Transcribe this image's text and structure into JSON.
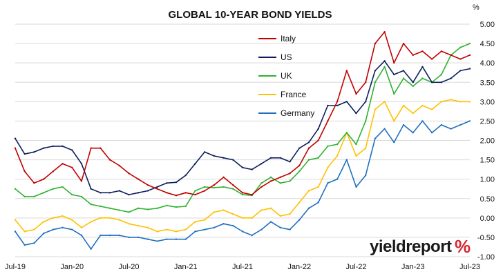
{
  "chart_data": {
    "type": "line",
    "title": "GLOBAL 10-YEAR BOND YIELDS",
    "y_unit_label": "%",
    "ylim": [
      -1.0,
      5.0
    ],
    "y_ticks": [
      "5.00",
      "4.50",
      "4.00",
      "3.50",
      "3.00",
      "2.50",
      "2.00",
      "1.50",
      "1.00",
      "0.50",
      "0.00",
      "-0.50",
      "-1.00"
    ],
    "y_tick_values": [
      5.0,
      4.5,
      4.0,
      3.5,
      3.0,
      2.5,
      2.0,
      1.5,
      1.0,
      0.5,
      0.0,
      -0.5,
      -1.0
    ],
    "x_ticks": [
      "Jul-19",
      "Jan-20",
      "Jul-20",
      "Jan-21",
      "Jul-21",
      "Jan-22",
      "Jul-22",
      "Jan-23",
      "Jul-23"
    ],
    "x_tick_values": [
      "2019-07",
      "2020-01",
      "2020-07",
      "2021-01",
      "2021-07",
      "2022-01",
      "2022-07",
      "2023-01",
      "2023-07"
    ],
    "x": [
      "2019-07",
      "2019-08",
      "2019-09",
      "2019-10",
      "2019-11",
      "2019-12",
      "2020-01",
      "2020-02",
      "2020-03",
      "2020-04",
      "2020-05",
      "2020-06",
      "2020-07",
      "2020-08",
      "2020-09",
      "2020-10",
      "2020-11",
      "2020-12",
      "2021-01",
      "2021-02",
      "2021-03",
      "2021-04",
      "2021-05",
      "2021-06",
      "2021-07",
      "2021-08",
      "2021-09",
      "2021-10",
      "2021-11",
      "2021-12",
      "2022-01",
      "2022-02",
      "2022-03",
      "2022-04",
      "2022-05",
      "2022-06",
      "2022-07",
      "2022-08",
      "2022-09",
      "2022-10",
      "2022-11",
      "2022-12",
      "2023-01",
      "2023-02",
      "2023-03",
      "2023-04",
      "2023-05",
      "2023-06",
      "2023-07"
    ],
    "grid": "horizontal",
    "legend_position": "top-center",
    "series": [
      {
        "name": "Italy",
        "color": "#c00000",
        "values": [
          1.8,
          1.2,
          0.9,
          1.0,
          1.2,
          1.4,
          1.3,
          0.95,
          1.8,
          1.8,
          1.5,
          1.35,
          1.15,
          1.0,
          0.85,
          0.75,
          0.65,
          0.58,
          0.65,
          0.6,
          0.7,
          0.85,
          1.05,
          0.85,
          0.65,
          0.6,
          0.8,
          0.95,
          1.05,
          1.15,
          1.35,
          1.8,
          2.0,
          2.5,
          3.0,
          3.8,
          3.2,
          3.5,
          4.5,
          4.8,
          4.0,
          4.5,
          4.2,
          4.3,
          4.1,
          4.3,
          4.2,
          4.1,
          4.2
        ]
      },
      {
        "name": "US",
        "color": "#0d1f5c",
        "values": [
          2.05,
          1.65,
          1.7,
          1.8,
          1.85,
          1.85,
          1.75,
          1.4,
          0.75,
          0.65,
          0.65,
          0.7,
          0.6,
          0.65,
          0.7,
          0.8,
          0.9,
          0.92,
          1.1,
          1.4,
          1.7,
          1.6,
          1.55,
          1.5,
          1.3,
          1.25,
          1.4,
          1.55,
          1.55,
          1.45,
          1.8,
          1.95,
          2.3,
          2.9,
          2.9,
          3.0,
          2.7,
          3.0,
          3.8,
          4.05,
          3.7,
          3.8,
          3.5,
          3.9,
          3.5,
          3.5,
          3.6,
          3.8,
          3.85
        ]
      },
      {
        "name": "UK",
        "color": "#2fb22f",
        "values": [
          0.75,
          0.55,
          0.55,
          0.65,
          0.75,
          0.8,
          0.6,
          0.55,
          0.35,
          0.3,
          0.25,
          0.2,
          0.15,
          0.25,
          0.22,
          0.25,
          0.32,
          0.28,
          0.3,
          0.7,
          0.8,
          0.78,
          0.8,
          0.75,
          0.6,
          0.58,
          0.9,
          1.05,
          0.9,
          0.95,
          1.2,
          1.5,
          1.55,
          1.85,
          1.9,
          2.2,
          1.9,
          2.5,
          3.5,
          3.9,
          3.2,
          3.6,
          3.4,
          3.6,
          3.5,
          3.7,
          4.2,
          4.4,
          4.5
        ]
      },
      {
        "name": "France",
        "color": "#ffc000",
        "values": [
          -0.05,
          -0.35,
          -0.3,
          -0.1,
          0.0,
          0.05,
          -0.05,
          -0.25,
          -0.1,
          0.0,
          0.0,
          -0.05,
          -0.15,
          -0.2,
          -0.25,
          -0.35,
          -0.3,
          -0.35,
          -0.3,
          -0.1,
          -0.05,
          0.15,
          0.2,
          0.1,
          0.0,
          0.0,
          0.2,
          0.25,
          0.05,
          0.1,
          0.4,
          0.7,
          0.8,
          1.3,
          1.6,
          2.2,
          1.6,
          1.8,
          2.8,
          3.0,
          2.5,
          2.9,
          2.7,
          2.9,
          2.8,
          3.0,
          3.05,
          3.0,
          3.0
        ]
      },
      {
        "name": "Germany",
        "color": "#1f6fbf",
        "values": [
          -0.35,
          -0.7,
          -0.65,
          -0.4,
          -0.3,
          -0.25,
          -0.3,
          -0.45,
          -0.8,
          -0.45,
          -0.45,
          -0.45,
          -0.5,
          -0.5,
          -0.55,
          -0.6,
          -0.55,
          -0.55,
          -0.55,
          -0.35,
          -0.3,
          -0.25,
          -0.15,
          -0.2,
          -0.35,
          -0.45,
          -0.3,
          -0.1,
          -0.25,
          -0.3,
          -0.05,
          0.25,
          0.4,
          0.9,
          1.0,
          1.5,
          0.8,
          1.1,
          2.05,
          2.3,
          1.95,
          2.4,
          2.2,
          2.5,
          2.2,
          2.4,
          2.3,
          2.4,
          2.5
        ]
      }
    ]
  },
  "branding": {
    "logo_word": "yieldreport",
    "logo_symbol": "%"
  }
}
